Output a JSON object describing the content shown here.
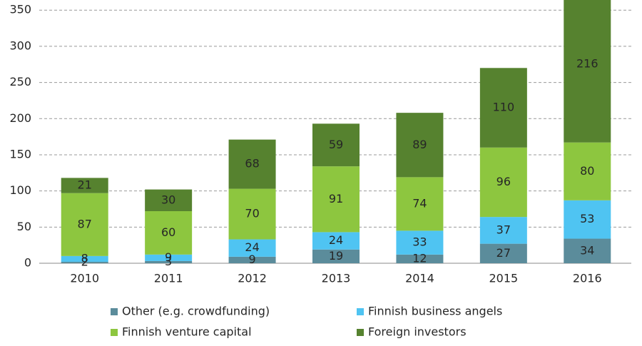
{
  "chart_data": {
    "type": "bar",
    "stacked": true,
    "categories": [
      "2010",
      "2011",
      "2012",
      "2013",
      "2014",
      "2015",
      "2016"
    ],
    "series": [
      {
        "name": "Other (e.g. crowdfunding)",
        "color": "#5b8c9b",
        "values": [
          2,
          3,
          9,
          19,
          12,
          27,
          34
        ]
      },
      {
        "name": "Finnish business angels",
        "color": "#4fc4f2",
        "values": [
          8,
          9,
          24,
          24,
          33,
          37,
          53
        ]
      },
      {
        "name": "Finnish venture capital",
        "color": "#8dc63f",
        "values": [
          87,
          60,
          70,
          91,
          74,
          96,
          80
        ]
      },
      {
        "name": "Foreign investors",
        "color": "#56822f",
        "values": [
          21,
          30,
          68,
          59,
          89,
          110,
          216
        ]
      }
    ],
    "ylim": [
      0,
      364
    ],
    "yticks": [
      0,
      50,
      100,
      150,
      200,
      250,
      300,
      350
    ],
    "grid": true
  }
}
